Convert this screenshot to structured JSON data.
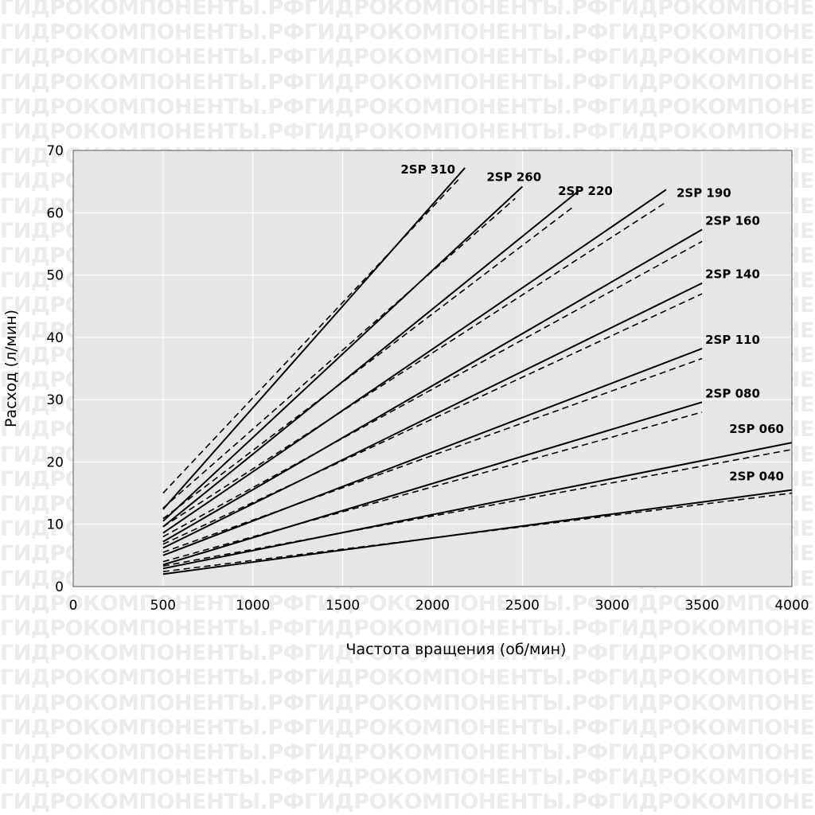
{
  "watermark": {
    "text": "ГИДРОКОМПОНЕНТЫ.РФ"
  },
  "chart_data": {
    "type": "line",
    "title": "",
    "xlabel": "Частота вращения (об/мин)",
    "ylabel": "Расход (л/мин)",
    "xlim": [
      0,
      4000
    ],
    "ylim": [
      0,
      70
    ],
    "xticks": [
      0,
      500,
      1000,
      1500,
      2000,
      2500,
      3000,
      3500,
      4000
    ],
    "yticks": [
      0,
      10,
      20,
      30,
      40,
      50,
      60,
      70
    ],
    "grid": true,
    "legend": "inline labels at line ends",
    "colors": {
      "plot_background": "#e6e6e6",
      "grid": "#ffffff",
      "line": "#000000"
    },
    "line_styles": {
      "solid": "theoretical",
      "dashed": "actual"
    },
    "series": [
      {
        "name": "2SP 310",
        "solid": [
          [
            500,
            12.4
          ],
          [
            2180,
            67.2
          ]
        ],
        "dashed": [
          [
            500,
            15.0
          ],
          [
            2150,
            65.5
          ]
        ]
      },
      {
        "name": "2SP 260",
        "solid": [
          [
            500,
            10.5
          ],
          [
            2500,
            64.2
          ]
        ],
        "dashed": [
          [
            500,
            12.6
          ],
          [
            2460,
            62.3
          ]
        ]
      },
      {
        "name": "2SP 220",
        "solid": [
          [
            500,
            9.6
          ],
          [
            2800,
            63.2
          ]
        ],
        "dashed": [
          [
            500,
            10.9
          ],
          [
            2790,
            61.1
          ]
        ]
      },
      {
        "name": "2SP 190",
        "solid": [
          [
            500,
            8.6
          ],
          [
            3300,
            63.7
          ]
        ],
        "dashed": [
          [
            500,
            9.6
          ],
          [
            3300,
            61.7
          ]
        ]
      },
      {
        "name": "2SP 160",
        "solid": [
          [
            500,
            7.2
          ],
          [
            3500,
            57.3
          ]
        ],
        "dashed": [
          [
            500,
            8.0
          ],
          [
            3500,
            55.4
          ]
        ]
      },
      {
        "name": "2SP 140",
        "solid": [
          [
            500,
            6.2
          ],
          [
            3500,
            48.7
          ]
        ],
        "dashed": [
          [
            500,
            6.8
          ],
          [
            3500,
            47.0
          ]
        ]
      },
      {
        "name": "2SP 110",
        "solid": [
          [
            500,
            5.0
          ],
          [
            3500,
            38.2
          ]
        ],
        "dashed": [
          [
            500,
            5.5
          ],
          [
            3500,
            36.6
          ]
        ]
      },
      {
        "name": "2SP 080",
        "solid": [
          [
            500,
            3.5
          ],
          [
            3500,
            29.6
          ]
        ],
        "dashed": [
          [
            500,
            4.0
          ],
          [
            3500,
            28.0
          ]
        ]
      },
      {
        "name": "2SP 060",
        "solid": [
          [
            500,
            2.9
          ],
          [
            4000,
            23.1
          ]
        ],
        "dashed": [
          [
            500,
            3.3
          ],
          [
            4000,
            22.0
          ]
        ]
      },
      {
        "name": "2SP 040",
        "solid": [
          [
            500,
            2.0
          ],
          [
            4000,
            15.5
          ]
        ],
        "dashed": [
          [
            500,
            2.4
          ],
          [
            4000,
            15.0
          ]
        ]
      }
    ]
  }
}
